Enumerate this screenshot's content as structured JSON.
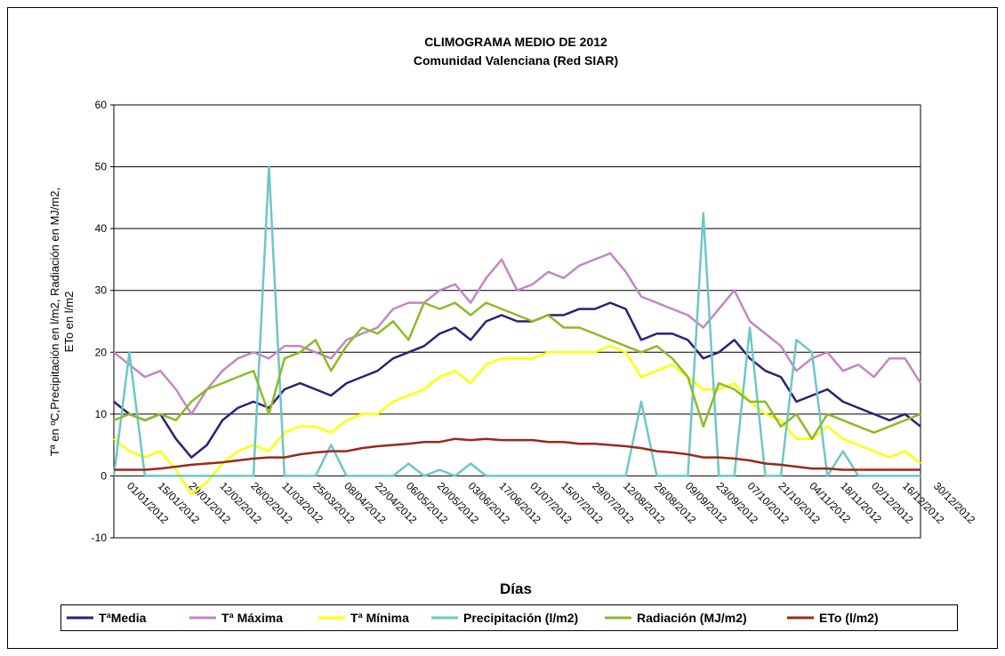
{
  "chart_data": {
    "type": "line",
    "title": "CLIMOGRAMA MEDIO DE 2012",
    "subtitle": "Comunidad Valenciana (Red SIAR)",
    "y_label": [
      "Tª en ºC,Precipitación en l/m2, Radiación en MJ/m2,",
      "ETo en l/m2"
    ],
    "x_label": "Días",
    "categories": [
      "01/01/2012",
      null,
      "15/01/2012",
      null,
      "29/01/2012",
      null,
      "12/02/2012",
      null,
      "26/02/2012",
      null,
      "11/03/2012",
      null,
      "25/03/2012",
      null,
      "08/04/2012",
      null,
      "22/04/2012",
      null,
      "06/05/2012",
      null,
      "20/05/2012",
      null,
      "03/06/2012",
      null,
      "17/06/2012",
      null,
      "01/07/2012",
      null,
      "15/07/2012",
      null,
      "29/07/2012",
      null,
      "12/08/2012",
      null,
      "26/08/2012",
      null,
      "09/09/2012",
      null,
      "23/09/2012",
      null,
      "07/10/2012",
      null,
      "21/10/2012",
      null,
      "04/11/2012",
      null,
      "18/11/2012",
      null,
      "02/12/2012",
      null,
      "16/12/2012",
      null,
      "30/12/2012"
    ],
    "ylim": [
      -10,
      60
    ],
    "yticks": [
      -10,
      0,
      10,
      20,
      30,
      40,
      50,
      60
    ],
    "grid": true,
    "legend": "bottom",
    "series": [
      {
        "name": "TªMedia",
        "color": "#2e1f78",
        "values": [
          12,
          10,
          9,
          10,
          6,
          3,
          5,
          9,
          11,
          12,
          11,
          14,
          15,
          14,
          13,
          15,
          16,
          17,
          19,
          20,
          21,
          23,
          24,
          22,
          25,
          26,
          25,
          25,
          26,
          26,
          27,
          27,
          28,
          27,
          22,
          23,
          23,
          22,
          19,
          20,
          22,
          19,
          17,
          16,
          12,
          13,
          14,
          12,
          11,
          10,
          9,
          10,
          8
        ]
      },
      {
        "name": "Tª Máxima",
        "color": "#c486c4",
        "values": [
          20,
          18,
          16,
          17,
          14,
          10,
          14,
          17,
          19,
          20,
          19,
          21,
          21,
          20,
          19,
          22,
          23,
          24,
          27,
          28,
          28,
          30,
          31,
          28,
          32,
          35,
          30,
          31,
          33,
          32,
          34,
          35,
          36,
          33,
          29,
          28,
          27,
          26,
          24,
          27,
          30,
          25,
          23,
          21,
          17,
          19,
          20,
          17,
          18,
          16,
          19,
          19,
          15
        ]
      },
      {
        "name": "Tª Mínima",
        "color": "#ffff00",
        "values": [
          6,
          4,
          3,
          4,
          1,
          -3,
          -1,
          2,
          4,
          5,
          4,
          7,
          8,
          8,
          7,
          9,
          10,
          10,
          12,
          13,
          14,
          16,
          17,
          15,
          18,
          19,
          19,
          19,
          20,
          20,
          20,
          20,
          21,
          20,
          16,
          17,
          18,
          16,
          14,
          14,
          15,
          12,
          10,
          9,
          6,
          6,
          8,
          6,
          5,
          4,
          3,
          4,
          2
        ]
      },
      {
        "name": "Precipitación (l/m2)",
        "color": "#6ec6c8",
        "values": [
          0,
          20,
          0,
          0,
          0,
          0,
          0,
          0,
          0,
          0,
          50,
          0,
          0,
          0,
          5,
          0,
          0,
          0,
          0,
          2,
          0,
          1,
          0,
          2,
          0,
          0,
          0,
          0,
          0,
          0,
          0,
          0,
          0,
          0,
          12,
          0,
          0,
          0,
          42.5,
          0,
          0,
          24,
          0,
          0,
          22,
          20,
          0,
          4,
          0,
          0,
          0,
          0,
          0
        ]
      },
      {
        "name": "Radiación (MJ/m2)",
        "color": "#8dbb25",
        "values": [
          9,
          10,
          9,
          10,
          9,
          12,
          14,
          15,
          16,
          17,
          10,
          19,
          20,
          22,
          17,
          21,
          24,
          23,
          25,
          22,
          28,
          27,
          28,
          26,
          28,
          27,
          26,
          25,
          26,
          24,
          24,
          23,
          22,
          21,
          20,
          21,
          19,
          16,
          8,
          15,
          14,
          12,
          12,
          8,
          10,
          6,
          10,
          9,
          8,
          7,
          8,
          9,
          10
        ]
      },
      {
        "name": "ETo (l/m2)",
        "color": "#9a2a1a",
        "values": [
          1,
          1,
          1,
          1.2,
          1.5,
          1.8,
          2,
          2.2,
          2.5,
          2.8,
          3,
          3,
          3.5,
          3.8,
          4,
          4,
          4.5,
          4.8,
          5,
          5.2,
          5.5,
          5.5,
          6,
          5.8,
          6,
          5.8,
          5.8,
          5.8,
          5.5,
          5.5,
          5.2,
          5.2,
          5,
          4.8,
          4.5,
          4,
          3.8,
          3.5,
          3,
          3,
          2.8,
          2.5,
          2,
          1.8,
          1.5,
          1.2,
          1.2,
          1,
          1,
          1,
          1,
          1,
          1
        ]
      }
    ]
  }
}
